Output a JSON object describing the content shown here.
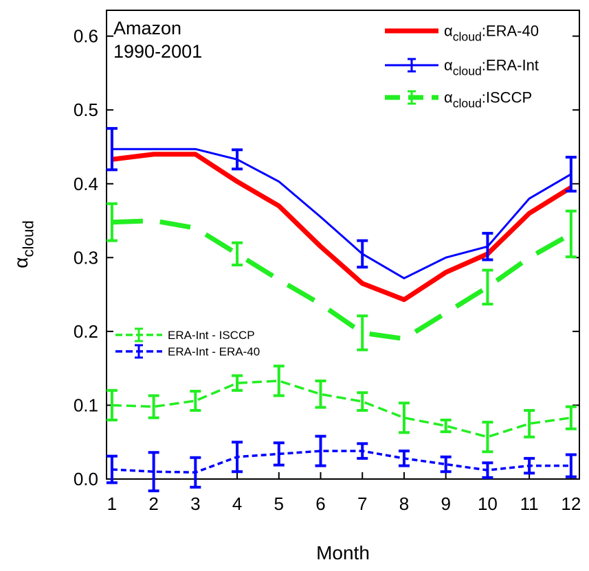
{
  "chart_data": {
    "type": "line",
    "annotations": [
      "Amazon",
      "1990-2001"
    ],
    "xlabel": "Month",
    "ylabel": "αcloud",
    "x": [
      1,
      2,
      3,
      4,
      5,
      6,
      7,
      8,
      9,
      10,
      11,
      12
    ],
    "xlim": [
      0.87,
      12.2
    ],
    "xticks": [
      1,
      2,
      3,
      4,
      5,
      6,
      7,
      8,
      9,
      10,
      11,
      12
    ],
    "ylim": [
      0,
      0.635
    ],
    "yticks": [
      {
        "value": 0,
        "label": "0.0"
      },
      0.1,
      0.2,
      0.3,
      0.4,
      0.5,
      0.6
    ],
    "series": [
      {
        "name": "αcloud:ERA-40",
        "color": "#ff0000",
        "values": [
          0.433,
          0.44,
          0.44,
          0.403,
          0.37,
          0.315,
          0.265,
          0.243,
          0.28,
          0.305,
          0.36,
          0.395
        ]
      },
      {
        "name": "αcloud:ERA-Int",
        "color": "#0000ff",
        "values": [
          0.447,
          0.447,
          0.447,
          0.433,
          0.403,
          0.355,
          0.305,
          0.272,
          0.3,
          0.315,
          0.38,
          0.413
        ],
        "errors": [
          0.028,
          null,
          null,
          0.013,
          null,
          null,
          0.018,
          null,
          null,
          0.018,
          null,
          0.023
        ]
      },
      {
        "name": "αcloud:ISCCP",
        "color": "#22ee22",
        "values": [
          0.348,
          0.35,
          0.34,
          0.305,
          0.27,
          0.237,
          0.198,
          0.19,
          0.225,
          0.26,
          0.3,
          0.332
        ],
        "errors": [
          0.025,
          null,
          null,
          0.015,
          null,
          null,
          0.023,
          null,
          null,
          0.023,
          null,
          0.031
        ]
      },
      {
        "name": "ERA-Int - ISCCP",
        "color": "#22ee22",
        "values": [
          0.1,
          0.098,
          0.106,
          0.13,
          0.133,
          0.115,
          0.105,
          0.083,
          0.072,
          0.057,
          0.075,
          0.083
        ],
        "errors": [
          0.02,
          0.015,
          0.013,
          0.01,
          0.02,
          0.018,
          0.012,
          0.02,
          0.008,
          0.02,
          0.018,
          0.015
        ]
      },
      {
        "name": "ERA-Int - ERA-40",
        "color": "#0000ff",
        "values": [
          0.013,
          0.01,
          0.009,
          0.03,
          0.034,
          0.038,
          0.038,
          0.028,
          0.02,
          0.012,
          0.018,
          0.018
        ],
        "errors": [
          0.018,
          0.026,
          0.02,
          0.02,
          0.015,
          0.02,
          0.01,
          0.01,
          0.01,
          0.01,
          0.01,
          0.015
        ]
      }
    ]
  }
}
